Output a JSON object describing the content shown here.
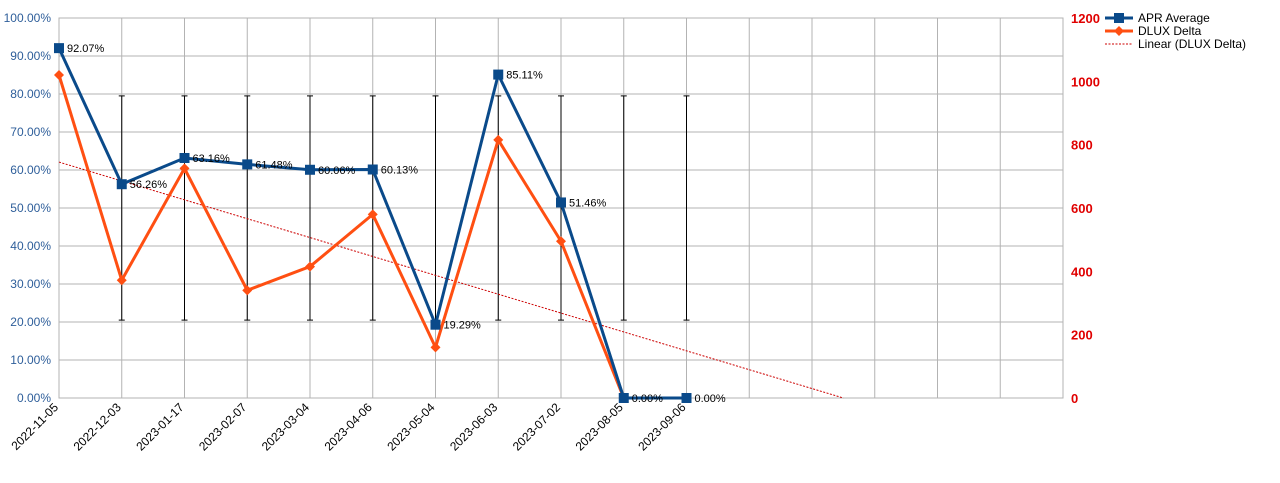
{
  "chart_data": {
    "type": "line",
    "title": "",
    "categories": [
      "2022-11-05",
      "2022-12-03",
      "2023-01-17",
      "2023-02-07",
      "2023-03-04",
      "2023-04-06",
      "2023-05-04",
      "2023-06-03",
      "2023-07-02",
      "2023-08-05",
      "2023-09-06"
    ],
    "x_slots": 16,
    "y_left": {
      "min": 0,
      "max": 100,
      "step": 10,
      "tick_labels": [
        "0.00%",
        "10.00%",
        "20.00%",
        "30.00%",
        "40.00%",
        "50.00%",
        "60.00%",
        "70.00%",
        "80.00%",
        "90.00%",
        "100.00%"
      ],
      "color": "#2e5e9a"
    },
    "y_right": {
      "min": 0,
      "max": 1200,
      "step": 200,
      "tick_labels": [
        "0",
        "200",
        "400",
        "600",
        "800",
        "1000",
        "1200"
      ],
      "color": "#e00000"
    },
    "grid": true,
    "legend_position": "top-right",
    "series": [
      {
        "name": "APR Average",
        "axis": "left",
        "color": "#0a4a8a",
        "marker": "square",
        "values": [
          92.07,
          56.26,
          63.16,
          61.48,
          60.06,
          60.13,
          19.29,
          85.11,
          51.46,
          0,
          0
        ],
        "labels": [
          "92.07%",
          "56.26%",
          "63.16%",
          "61.48%",
          "60.06%",
          "60.13%",
          "19.29%",
          "85.11%",
          "51.46%",
          "0.00%",
          "0.00%"
        ]
      },
      {
        "name": "DLUX Delta",
        "axis": "right",
        "color": "#ff4f12",
        "marker": "diamond",
        "values": [
          1020,
          372,
          725,
          340,
          415,
          580,
          160,
          815,
          495,
          0,
          0
        ]
      }
    ],
    "trendline": {
      "name": "Linear (DLUX Delta)",
      "axis": "right",
      "color": "#cc0000",
      "start_slot": 0,
      "start_value": 745,
      "end_slot": 12.5,
      "end_value": 0
    },
    "error_bars": {
      "color": "#000000",
      "axis": "left",
      "low": 20.5,
      "high": 79.5,
      "slots": [
        1,
        2,
        3,
        4,
        5,
        6,
        7,
        8,
        9,
        10
      ]
    }
  }
}
